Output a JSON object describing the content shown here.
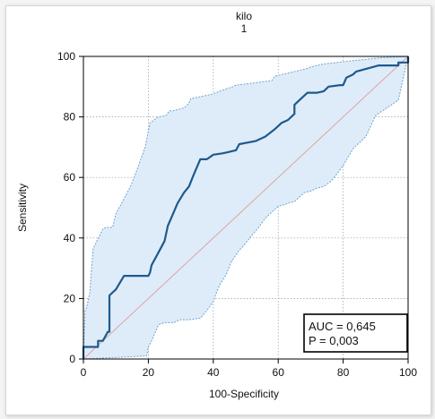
{
  "chart_data": {
    "type": "line",
    "title": "kilo",
    "subtitle": "1",
    "xlabel": "100-Specificity",
    "ylabel": "Sensitivity",
    "xlim": [
      0,
      100
    ],
    "ylim": [
      0,
      100
    ],
    "xticks": [
      0,
      20,
      40,
      60,
      80,
      100
    ],
    "yticks": [
      0,
      20,
      40,
      60,
      80,
      100
    ],
    "xtick_labels": [
      "0",
      "20",
      "40",
      "60",
      "80",
      "100"
    ],
    "ytick_labels": [
      "0",
      "20",
      "40",
      "60",
      "80",
      "100"
    ],
    "grid": true,
    "colors": {
      "roc": "#1f5a8c",
      "band_fill": "#deecf9",
      "band_edge": "#6fa3cf",
      "diagonal": "#e0a3a3",
      "grid": "#9a9a9a"
    },
    "stats": {
      "auc": "AUC = 0,645",
      "p": "P = 0,003"
    },
    "series": [
      {
        "role": "roc",
        "x": [
          0,
          0,
          4.5,
          4.5,
          6,
          7.5,
          8,
          8,
          10,
          12.5,
          20,
          20.5,
          21,
          23,
          25,
          26,
          28,
          29,
          31,
          32.5,
          34,
          36,
          36,
          38,
          40,
          43,
          47,
          48,
          53,
          56,
          59,
          61,
          63,
          65,
          65,
          67,
          69,
          71,
          72,
          74,
          75.5,
          79,
          80,
          81,
          83,
          84,
          91,
          97,
          97,
          100,
          100
        ],
        "y": [
          0,
          4,
          4,
          6,
          6,
          9,
          9,
          21,
          23,
          27.5,
          27.5,
          28.5,
          31,
          35,
          39,
          44,
          49,
          51.5,
          55,
          57,
          61,
          66,
          66,
          66,
          67.5,
          68,
          69,
          71,
          72,
          73.5,
          76,
          78,
          79,
          81,
          84,
          86,
          88,
          88,
          88,
          88.5,
          90,
          90.5,
          90.5,
          93,
          94,
          95,
          97,
          97,
          98,
          98,
          100
        ]
      },
      {
        "role": "ci-upper",
        "x": [
          0,
          0.5,
          1,
          2,
          2.5,
          3,
          6,
          7,
          8,
          9,
          10,
          12.5,
          14.5,
          16.5,
          19,
          20.5,
          23,
          25.5,
          26.5,
          27.5,
          31,
          32.5,
          33,
          39.5,
          42,
          46,
          47,
          51,
          54.5,
          58,
          59,
          63,
          69,
          70,
          72,
          74,
          78,
          82,
          87,
          91,
          96,
          100
        ],
        "y": [
          0,
          16,
          17,
          22,
          29.5,
          36.5,
          43,
          43.5,
          43.5,
          43.5,
          48,
          53,
          57,
          62.5,
          70,
          78,
          80,
          80.5,
          82,
          82,
          83,
          84.5,
          86,
          87.5,
          88.5,
          90,
          90.5,
          91,
          91.5,
          92,
          93.5,
          94.5,
          96,
          96.5,
          97,
          97.5,
          98,
          98.5,
          99,
          99.5,
          99.8,
          100
        ]
      },
      {
        "role": "ci-lower",
        "x": [
          0,
          19.5,
          20,
          21,
          22,
          23,
          23.5,
          25,
          28,
          28.5,
          30,
          32.5,
          36,
          38,
          40,
          41,
          42,
          44,
          45.5,
          48,
          49,
          52,
          54,
          56,
          59,
          60,
          62,
          63,
          65,
          67,
          68,
          70,
          72,
          74,
          76,
          78,
          80,
          82,
          83,
          87,
          90,
          97,
          100
        ],
        "y": [
          0,
          1,
          4,
          6,
          8.5,
          11,
          11.5,
          12,
          12,
          12.5,
          13,
          13,
          13.5,
          16,
          19,
          22,
          24.5,
          28,
          32,
          36,
          37,
          41,
          43.5,
          46.5,
          49.5,
          50.5,
          51,
          51.5,
          52,
          54,
          55,
          55.5,
          56.5,
          57,
          58.5,
          61,
          64,
          67.5,
          69.5,
          73.5,
          80.5,
          85.5,
          100
        ]
      },
      {
        "role": "reference",
        "x": [
          0,
          100
        ],
        "y": [
          0,
          100
        ]
      }
    ]
  }
}
